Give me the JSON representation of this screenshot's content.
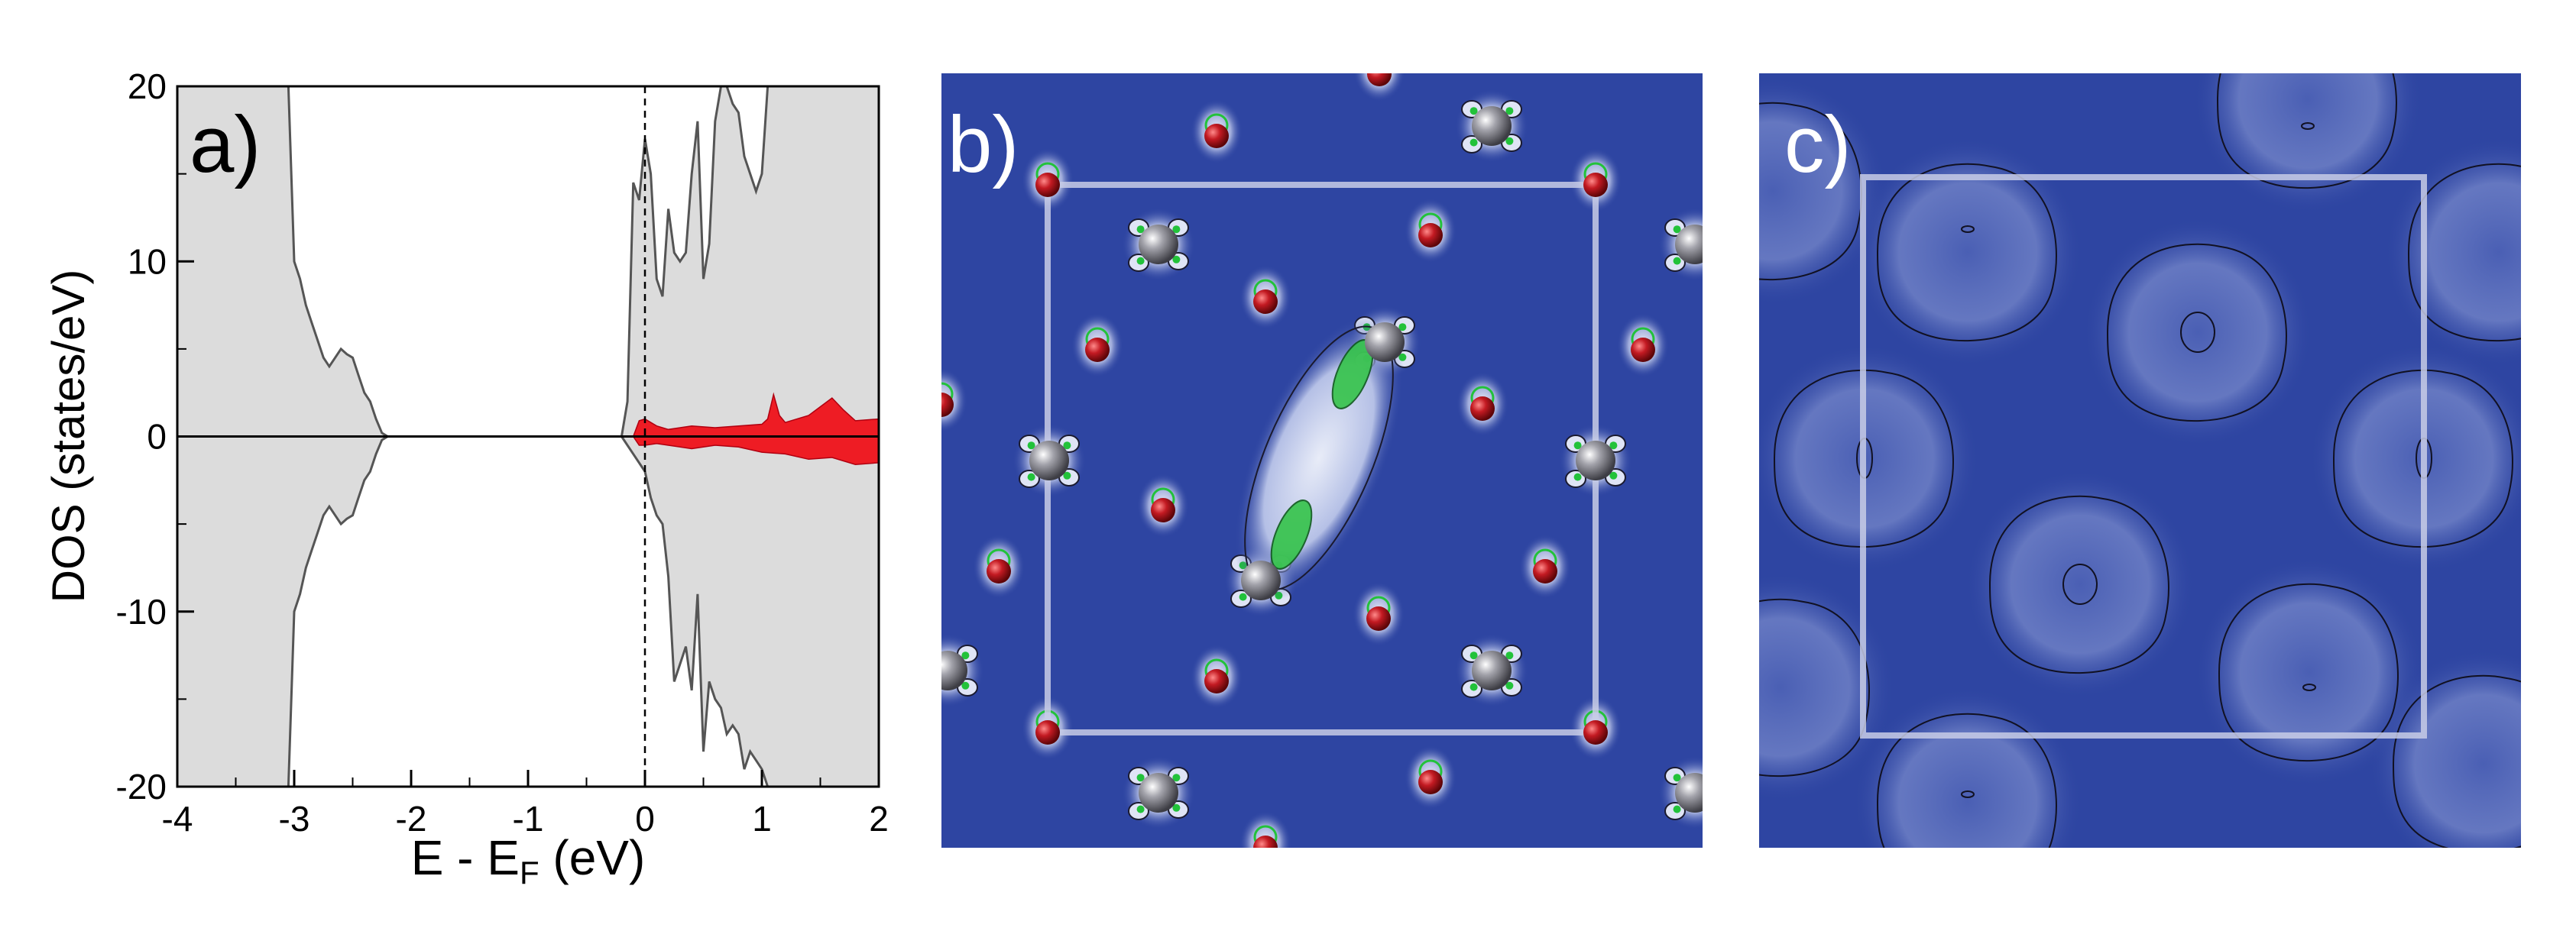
{
  "panel_a": {
    "label": "a)",
    "xlabel_prefix": "E - E",
    "xlabel_sub": "F",
    "xlabel_suffix": " (eV)",
    "ylabel": "DOS (states/eV)"
  },
  "panel_b": {
    "label": "b)"
  },
  "panel_c": {
    "label": "c)"
  },
  "colors": {
    "dos_fill": "#dcdcdc",
    "dos_line": "#555555",
    "projected_fill": "#ee1c24",
    "map_background": "#2e45a2",
    "cell_outline": "#c8cde6",
    "oxygen_atom": "#b3121b",
    "metal_atom": "#8e8e96",
    "contour_green": "#22c23a"
  },
  "chart_data": {
    "type": "area",
    "xlim": [
      -4,
      2
    ],
    "ylim": [
      -20,
      20
    ],
    "x_ticks": [
      -4,
      -3,
      -2,
      -1,
      0,
      1,
      2
    ],
    "y_ticks": [
      -20,
      -10,
      0,
      10,
      20
    ],
    "fermi_level_x": 0,
    "series": [
      {
        "role": "total DOS, spin up",
        "x": [
          -3.1,
          -3.05,
          -3.0,
          -2.95,
          -2.9,
          -2.85,
          -2.8,
          -2.75,
          -2.7,
          -2.65,
          -2.6,
          -2.55,
          -2.5,
          -2.45,
          -2.4,
          -2.35,
          -2.3,
          -2.25,
          -2.2,
          -0.2,
          -0.15,
          -0.1,
          -0.05,
          0.0,
          0.05,
          0.1,
          0.15,
          0.2,
          0.25,
          0.3,
          0.35,
          0.4,
          0.45,
          0.5,
          0.55,
          0.6,
          0.65,
          0.7,
          0.75,
          0.8,
          0.85,
          0.9,
          0.95,
          1.0,
          1.05,
          1.1
        ],
        "y": [
          20,
          20,
          10,
          9,
          7.5,
          6.5,
          5.5,
          4.5,
          4,
          4.5,
          5,
          4.7,
          4.5,
          3.5,
          2.5,
          2,
          1,
          0.2,
          0,
          0,
          2,
          14.5,
          13.5,
          17,
          15,
          9,
          8,
          13,
          10.5,
          10,
          10.5,
          15,
          18,
          9,
          11,
          18,
          20,
          20,
          19,
          18.5,
          16,
          15,
          14,
          15,
          20,
          20
        ]
      },
      {
        "role": "total DOS, spin down",
        "x": [
          -3.1,
          -3.05,
          -3.0,
          -2.95,
          -2.9,
          -2.85,
          -2.8,
          -2.75,
          -2.7,
          -2.65,
          -2.6,
          -2.55,
          -2.5,
          -2.45,
          -2.4,
          -2.35,
          -2.3,
          -2.25,
          -2.2,
          -0.2,
          -0.1,
          0.0,
          0.05,
          0.1,
          0.15,
          0.2,
          0.25,
          0.3,
          0.35,
          0.4,
          0.45,
          0.5,
          0.55,
          0.6,
          0.65,
          0.7,
          0.75,
          0.8,
          0.85,
          0.9,
          0.95,
          1.0,
          1.05,
          1.1
        ],
        "y": [
          -20,
          -20,
          -10,
          -9,
          -7.5,
          -6.5,
          -5.5,
          -4.5,
          -4,
          -4.5,
          -5,
          -4.7,
          -4.5,
          -3.5,
          -2.5,
          -2,
          -1,
          -0.2,
          0,
          0,
          -1,
          -2,
          -3.5,
          -4.5,
          -5,
          -8,
          -14,
          -13,
          -12,
          -14.5,
          -9,
          -18,
          -14,
          -15,
          -15.5,
          -17,
          -16.5,
          -17,
          -19,
          -18,
          -18.5,
          -19,
          -20,
          -20
        ]
      },
      {
        "role": "projected DOS, spin up",
        "x": [
          -0.1,
          -0.05,
          0.0,
          0.1,
          0.2,
          0.4,
          0.6,
          0.8,
          1.0,
          1.05,
          1.1,
          1.15,
          1.2,
          1.4,
          1.6,
          1.7,
          1.8,
          2.0
        ],
        "y": [
          0,
          0.9,
          1.0,
          0.6,
          0.4,
          0.6,
          0.5,
          0.6,
          0.7,
          1.0,
          2.4,
          1.2,
          0.8,
          1.2,
          2.2,
          1.5,
          0.9,
          1.0
        ]
      },
      {
        "role": "projected DOS, spin down",
        "x": [
          -0.1,
          -0.05,
          0.0,
          0.1,
          0.2,
          0.4,
          0.6,
          0.8,
          1.0,
          1.2,
          1.4,
          1.6,
          1.8,
          2.0
        ],
        "y": [
          0,
          -0.5,
          -0.5,
          -0.4,
          -0.5,
          -0.7,
          -0.5,
          -0.6,
          -0.9,
          -1.0,
          -1.3,
          -1.2,
          -1.6,
          -1.5
        ]
      }
    ]
  }
}
